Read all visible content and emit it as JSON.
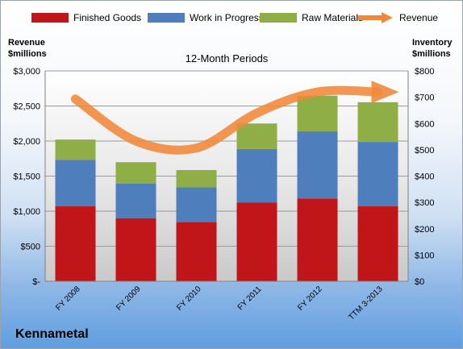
{
  "chart_data": {
    "type": "bar",
    "stacked": true,
    "title": "12-Month Periods",
    "footer": "Kennametal",
    "categories": [
      "FY 2008",
      "FY 2009",
      "FY 2010",
      "FY 2011",
      "FY 2012",
      "TTM 3-2013"
    ],
    "y_left": {
      "label_line1": "Revenue",
      "label_line2": "$millions",
      "range": [
        0,
        3000
      ],
      "ticks": [
        0,
        500,
        1000,
        1500,
        2000,
        2500,
        3000
      ],
      "tick_labels": [
        "$-",
        "$500",
        "$1,000",
        "$1,500",
        "$2,000",
        "$2,500",
        "$3,000"
      ]
    },
    "y_right": {
      "label_line1": "Inventory",
      "label_line2": "$millions",
      "range": [
        0,
        800
      ],
      "ticks": [
        0,
        100,
        200,
        300,
        400,
        500,
        600,
        700,
        800
      ],
      "tick_labels": [
        "$0",
        "$100",
        "$200",
        "$300",
        "$400",
        "$500",
        "$600",
        "$700",
        "$800"
      ]
    },
    "series": [
      {
        "name": "Finished Goods",
        "kind": "bar",
        "axis": "right",
        "color": "#c0161a",
        "values": [
          285,
          240,
          225,
          300,
          315,
          285
        ]
      },
      {
        "name": "Work in Progress",
        "kind": "bar",
        "axis": "right",
        "color": "#4f7ebd",
        "values": [
          177,
          132,
          132,
          203,
          255,
          245
        ]
      },
      {
        "name": "Raw Materials",
        "kind": "bar",
        "axis": "right",
        "color": "#8fae45",
        "values": [
          77,
          81,
          66,
          97,
          136,
          151
        ]
      },
      {
        "name": "Revenue",
        "kind": "line",
        "axis": "left",
        "color": "#f0883a",
        "values": [
          2600,
          2000,
          1900,
          2400,
          2700,
          2700
        ]
      }
    ],
    "grid": true,
    "legend_position": "top"
  }
}
